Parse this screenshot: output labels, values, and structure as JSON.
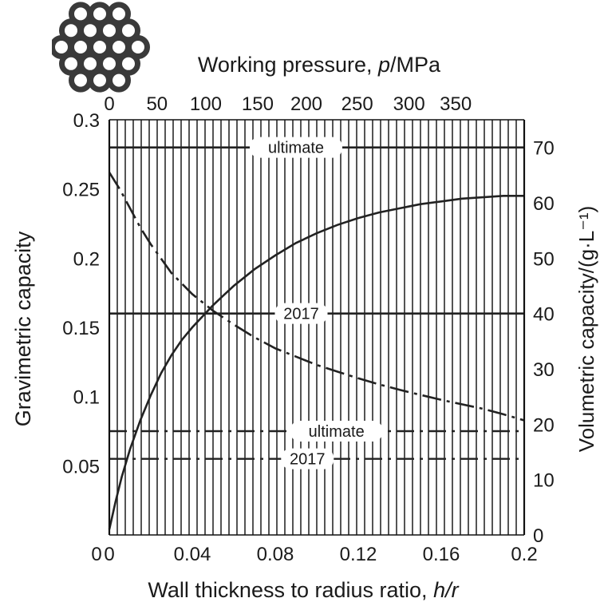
{
  "chart_data": {
    "type": "line",
    "title_top": "Working pressure, ",
    "title_top_var": "p",
    "title_top_unit": "/MPa",
    "xlabel_prefix": "Wall thickness to radius ratio, ",
    "xlabel_var": "h/r",
    "ylabel_left": "Gravimetric capacity",
    "ylabel_right": "Volumetric capacity/(g·L⁻¹)",
    "xlim": [
      0,
      0.2
    ],
    "ylim_left": [
      0,
      0.3
    ],
    "ylim_right": [
      0,
      75
    ],
    "x_ticks": [
      {
        "v": 0,
        "label": "0"
      },
      {
        "v": 0.04,
        "label": "0.04"
      },
      {
        "v": 0.08,
        "label": "0.08"
      },
      {
        "v": 0.12,
        "label": "0.12"
      },
      {
        "v": 0.16,
        "label": "0.16"
      },
      {
        "v": 0.2,
        "label": "0.2"
      }
    ],
    "y_left_ticks": [
      {
        "v": 0.05,
        "label": "0.05"
      },
      {
        "v": 0.1,
        "label": "0.1"
      },
      {
        "v": 0.15,
        "label": "0.15"
      },
      {
        "v": 0.2,
        "label": "0.2"
      },
      {
        "v": 0.25,
        "label": "0.25"
      },
      {
        "v": 0.3,
        "label": "0.3"
      }
    ],
    "y_right_ticks": [
      {
        "v": 0,
        "label": "0"
      },
      {
        "v": 10,
        "label": "10"
      },
      {
        "v": 20,
        "label": "20"
      },
      {
        "v": 30,
        "label": "30"
      },
      {
        "v": 40,
        "label": "40"
      },
      {
        "v": 50,
        "label": "50"
      },
      {
        "v": 60,
        "label": "60"
      },
      {
        "v": 70,
        "label": "70"
      }
    ],
    "top_ticks": [
      {
        "v": 0,
        "label": "0",
        "x": 0.0
      },
      {
        "v": 50,
        "label": "50",
        "x": 0.023
      },
      {
        "v": 100,
        "label": "100",
        "x": 0.0465
      },
      {
        "v": 150,
        "label": "150",
        "x": 0.0715
      },
      {
        "v": 200,
        "label": "200",
        "x": 0.095
      },
      {
        "v": 250,
        "label": "250",
        "x": 0.1195
      },
      {
        "v": 300,
        "label": "300",
        "x": 0.1445
      },
      {
        "v": 350,
        "label": "350",
        "x": 0.167
      }
    ],
    "grid_vertical_count": 52,
    "reference_lines": [
      {
        "name": "gravimetric-ultimate",
        "label": "ultimate",
        "style": "solid",
        "axis": "left",
        "y": 0.28,
        "label_x": 0.09
      },
      {
        "name": "gravimetric-2017",
        "label": "2017",
        "style": "solid",
        "axis": "left",
        "y": 0.16,
        "label_x": 0.0925
      },
      {
        "name": "volumetric-ultimate",
        "label": "ultimate",
        "style": "dashdot",
        "axis": "right",
        "y": 18.75,
        "label_x": 0.1095
      },
      {
        "name": "volumetric-2017",
        "label": "2017",
        "style": "dashdot",
        "axis": "right",
        "y": 13.75,
        "label_x": 0.0955
      }
    ],
    "series": [
      {
        "name": "gravimetric-capacity",
        "style": "solid",
        "axis": "left",
        "x": [
          0,
          0.003,
          0.006,
          0.01,
          0.015,
          0.02,
          0.025,
          0.03,
          0.035,
          0.04,
          0.045,
          0.05,
          0.055,
          0.06,
          0.07,
          0.08,
          0.09,
          0.1,
          0.11,
          0.12,
          0.13,
          0.14,
          0.15,
          0.16,
          0.17,
          0.18,
          0.19,
          0.2
        ],
        "y": [
          0.004,
          0.024,
          0.042,
          0.062,
          0.083,
          0.101,
          0.117,
          0.13,
          0.141,
          0.15,
          0.158,
          0.166,
          0.173,
          0.18,
          0.192,
          0.202,
          0.211,
          0.218,
          0.224,
          0.229,
          0.233,
          0.236,
          0.239,
          0.241,
          0.243,
          0.244,
          0.245,
          0.245
        ]
      },
      {
        "name": "volumetric-capacity",
        "style": "dashdot",
        "axis": "right",
        "x": [
          0,
          0.005,
          0.01,
          0.015,
          0.02,
          0.03,
          0.04,
          0.05,
          0.06,
          0.07,
          0.08,
          0.09,
          0.1,
          0.11,
          0.12,
          0.13,
          0.14,
          0.15,
          0.16,
          0.17,
          0.18,
          0.19,
          0.2
        ],
        "y": [
          65.5,
          62.5,
          59.0,
          55.5,
          52.5,
          47.3,
          43.5,
          40.5,
          38.0,
          35.7,
          33.7,
          32.2,
          30.7,
          29.5,
          28.3,
          27.2,
          26.2,
          25.3,
          24.4,
          23.6,
          22.8,
          21.8,
          20.7
        ]
      }
    ]
  }
}
